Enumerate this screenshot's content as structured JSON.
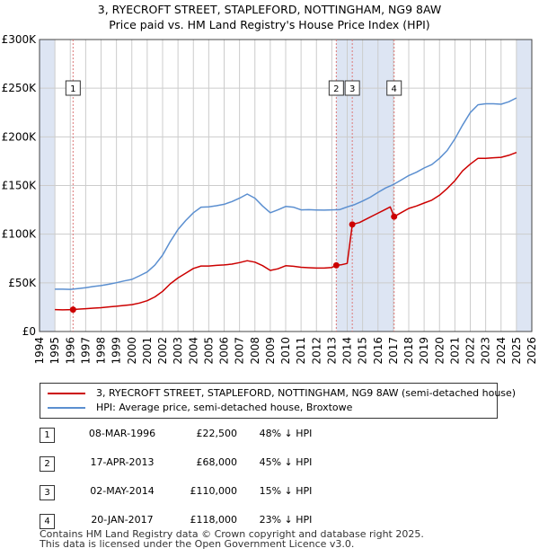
{
  "title_line1": "3, RYECROFT STREET, STAPLEFORD, NOTTINGHAM, NG9 8AW",
  "title_line2": "Price paid vs. HM Land Registry's House Price Index (HPI)",
  "colors": {
    "red": "#cc0000",
    "blue": "#5b8fd0",
    "band": "#dde5f3",
    "grid": "#cccccc",
    "vline": "#dd7777"
  },
  "chart_data": {
    "type": "line",
    "title": "3, RYECROFT STREET, STAPLEFORD, NOTTINGHAM, NG9 8AW",
    "subtitle": "Price paid vs. HM Land Registry's House Price Index (HPI)",
    "xlim": [
      1994,
      2026
    ],
    "ylim": [
      0,
      300000
    ],
    "y_ticks": [
      {
        "value": 0,
        "label": "£0"
      },
      {
        "value": 50000,
        "label": "£50K"
      },
      {
        "value": 100000,
        "label": "£100K"
      },
      {
        "value": 150000,
        "label": "£150K"
      },
      {
        "value": 200000,
        "label": "£200K"
      },
      {
        "value": 250000,
        "label": "£250K"
      },
      {
        "value": 300000,
        "label": "£300K"
      }
    ],
    "x_ticks": [
      "1994",
      "1995",
      "1996",
      "1997",
      "1998",
      "1999",
      "2000",
      "2001",
      "2002",
      "2003",
      "2004",
      "2005",
      "2006",
      "2007",
      "2008",
      "2009",
      "2010",
      "2011",
      "2012",
      "2013",
      "2014",
      "2015",
      "2016",
      "2017",
      "2018",
      "2019",
      "2020",
      "2021",
      "2022",
      "2023",
      "2024",
      "2025",
      "2026"
    ],
    "shaded_ranges": [
      [
        1994.0,
        1995.0
      ],
      [
        2013.29,
        2017.05
      ],
      [
        2025.0,
        2026.0
      ]
    ],
    "series": [
      {
        "name": "3, RYECROFT STREET, STAPLEFORD, NOTTINGHAM, NG9 8AW (semi-detached house)",
        "color": "#cc0000",
        "points": [
          [
            1995.0,
            22500
          ],
          [
            1995.5,
            22200
          ],
          [
            1996.18,
            22500
          ],
          [
            1996.5,
            23000
          ],
          [
            1997.0,
            23400
          ],
          [
            1997.5,
            24000
          ],
          [
            1998.0,
            24500
          ],
          [
            1998.5,
            25300
          ],
          [
            1999.0,
            25900
          ],
          [
            1999.5,
            26800
          ],
          [
            2000.0,
            27600
          ],
          [
            2000.5,
            29300
          ],
          [
            2001.0,
            31700
          ],
          [
            2001.5,
            35500
          ],
          [
            2002.0,
            41300
          ],
          [
            2002.5,
            49000
          ],
          [
            2003.0,
            55000
          ],
          [
            2003.5,
            59900
          ],
          [
            2004.0,
            64800
          ],
          [
            2004.5,
            67300
          ],
          [
            2005.0,
            67300
          ],
          [
            2005.5,
            67900
          ],
          [
            2006.0,
            68400
          ],
          [
            2006.5,
            69200
          ],
          [
            2007.0,
            70800
          ],
          [
            2007.5,
            72700
          ],
          [
            2008.0,
            71300
          ],
          [
            2008.5,
            67700
          ],
          [
            2009.0,
            62800
          ],
          [
            2009.5,
            64400
          ],
          [
            2010.0,
            67600
          ],
          [
            2010.5,
            67000
          ],
          [
            2011.0,
            66000
          ],
          [
            2011.5,
            65500
          ],
          [
            2012.0,
            65200
          ],
          [
            2012.5,
            65200
          ],
          [
            2013.0,
            65800
          ],
          [
            2013.29,
            68000
          ],
          [
            2013.6,
            68500
          ],
          [
            2014.0,
            70000
          ],
          [
            2014.33,
            110000
          ],
          [
            2014.8,
            112000
          ],
          [
            2015.3,
            116000
          ],
          [
            2015.8,
            120000
          ],
          [
            2016.3,
            124000
          ],
          [
            2016.8,
            128000
          ],
          [
            2017.05,
            118000
          ],
          [
            2017.5,
            122000
          ],
          [
            2018.0,
            126500
          ],
          [
            2018.5,
            129000
          ],
          [
            2019.0,
            132000
          ],
          [
            2019.5,
            135000
          ],
          [
            2020.0,
            140000
          ],
          [
            2020.5,
            147000
          ],
          [
            2021.0,
            155000
          ],
          [
            2021.5,
            165000
          ],
          [
            2022.0,
            172000
          ],
          [
            2022.5,
            178000
          ],
          [
            2023.0,
            178000
          ],
          [
            2023.5,
            178500
          ],
          [
            2024.0,
            179000
          ],
          [
            2024.5,
            181000
          ],
          [
            2025.0,
            184000
          ]
        ]
      },
      {
        "name": "HPI: Average price, semi-detached house, Broxtowe",
        "color": "#5b8fd0",
        "points": [
          [
            1995.0,
            43500
          ],
          [
            1995.5,
            43500
          ],
          [
            1996.0,
            43300
          ],
          [
            1996.5,
            44000
          ],
          [
            1997.0,
            45000
          ],
          [
            1997.5,
            46200
          ],
          [
            1998.0,
            47200
          ],
          [
            1998.5,
            48600
          ],
          [
            1999.0,
            50100
          ],
          [
            1999.5,
            52000
          ],
          [
            2000.0,
            53500
          ],
          [
            2000.5,
            57200
          ],
          [
            2001.0,
            61200
          ],
          [
            2001.5,
            68200
          ],
          [
            2002.0,
            78500
          ],
          [
            2002.5,
            92500
          ],
          [
            2003.0,
            104800
          ],
          [
            2003.5,
            114000
          ],
          [
            2004.0,
            122000
          ],
          [
            2004.5,
            127800
          ],
          [
            2005.0,
            128000
          ],
          [
            2005.5,
            129200
          ],
          [
            2006.0,
            130700
          ],
          [
            2006.5,
            133500
          ],
          [
            2007.0,
            137000
          ],
          [
            2007.5,
            141200
          ],
          [
            2008.0,
            137000
          ],
          [
            2008.5,
            129000
          ],
          [
            2009.0,
            122000
          ],
          [
            2009.5,
            125000
          ],
          [
            2010.0,
            128500
          ],
          [
            2010.5,
            127800
          ],
          [
            2011.0,
            125000
          ],
          [
            2011.5,
            125200
          ],
          [
            2012.0,
            124900
          ],
          [
            2012.5,
            124700
          ],
          [
            2013.0,
            125000
          ],
          [
            2013.5,
            125200
          ],
          [
            2014.0,
            128000
          ],
          [
            2014.5,
            130500
          ],
          [
            2015.0,
            134000
          ],
          [
            2015.5,
            138000
          ],
          [
            2016.0,
            143000
          ],
          [
            2016.5,
            147500
          ],
          [
            2017.0,
            151000
          ],
          [
            2017.5,
            155500
          ],
          [
            2018.0,
            160200
          ],
          [
            2018.5,
            163700
          ],
          [
            2019.0,
            168000
          ],
          [
            2019.5,
            171500
          ],
          [
            2020.0,
            178000
          ],
          [
            2020.5,
            186000
          ],
          [
            2021.0,
            198000
          ],
          [
            2021.5,
            212000
          ],
          [
            2022.0,
            225000
          ],
          [
            2022.5,
            233000
          ],
          [
            2023.0,
            234000
          ],
          [
            2023.5,
            234000
          ],
          [
            2024.0,
            233500
          ],
          [
            2024.5,
            236000
          ],
          [
            2025.0,
            240000
          ]
        ]
      }
    ],
    "sale_markers": [
      {
        "label": "1",
        "x": 1996.18,
        "y": 22500
      },
      {
        "label": "2",
        "x": 2013.29,
        "y": 68000
      },
      {
        "label": "3",
        "x": 2014.33,
        "y": 110000
      },
      {
        "label": "4",
        "x": 2017.05,
        "y": 118000
      }
    ]
  },
  "legend": {
    "red_label": "3, RYECROFT STREET, STAPLEFORD, NOTTINGHAM, NG9 8AW (semi-detached house)",
    "blue_label": "HPI: Average price, semi-detached house, Broxtowe"
  },
  "sales": [
    {
      "num": "1",
      "date": "08-MAR-1996",
      "price": "£22,500",
      "hpi": "48% ↓ HPI"
    },
    {
      "num": "2",
      "date": "17-APR-2013",
      "price": "£68,000",
      "hpi": "45% ↓ HPI"
    },
    {
      "num": "3",
      "date": "02-MAY-2014",
      "price": "£110,000",
      "hpi": "15% ↓ HPI"
    },
    {
      "num": "4",
      "date": "20-JAN-2017",
      "price": "£118,000",
      "hpi": "23% ↓ HPI"
    }
  ],
  "footer_line1": "Contains HM Land Registry data © Crown copyright and database right 2025.",
  "footer_line2": "This data is licensed under the Open Government Licence v3.0."
}
